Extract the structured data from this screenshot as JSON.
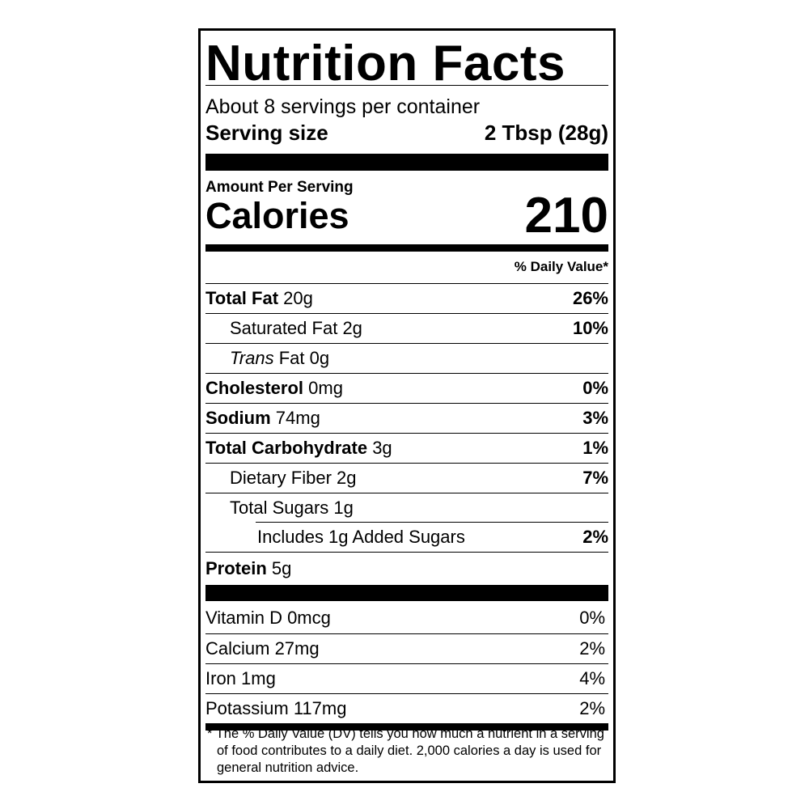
{
  "title": "Nutrition Facts",
  "servings_per_container": "About 8 servings per container",
  "serving_size": {
    "label": "Serving size",
    "value": "2 Tbsp (28g)"
  },
  "amount_per_serving": "Amount Per Serving",
  "calories": {
    "label": "Calories",
    "value": "210"
  },
  "daily_value_header": "% Daily Value*",
  "nutrients": [
    {
      "name": "Total Fat",
      "amount": "20g",
      "dv": "26%"
    },
    {
      "name": "Saturated Fat",
      "amount": "2g",
      "dv": "10%"
    },
    {
      "name": "Trans",
      "name_suffix": "Fat",
      "amount": "0g",
      "dv": ""
    },
    {
      "name": "Cholesterol",
      "amount": "0mg",
      "dv": "0%"
    },
    {
      "name": "Sodium",
      "amount": "74mg",
      "dv": "3%"
    },
    {
      "name": "Total Carbohydrate",
      "amount": "3g",
      "dv": "1%"
    },
    {
      "name": "Dietary Fiber",
      "amount": "2g",
      "dv": "7%"
    },
    {
      "name": "Total Sugars",
      "amount": "1g",
      "dv": ""
    },
    {
      "name": "Includes 1g Added Sugars",
      "amount": "",
      "dv": "2%"
    },
    {
      "name": "Protein",
      "amount": "5g",
      "dv": ""
    }
  ],
  "vitamins": [
    {
      "name": "Vitamin D 0mcg",
      "dv": "0%"
    },
    {
      "name": "Calcium 27mg",
      "dv": "2%"
    },
    {
      "name": "Iron 1mg",
      "dv": "4%"
    },
    {
      "name": "Potassium 117mg",
      "dv": "2%"
    }
  ],
  "footnote": "* The % Daily Value (DV) tells you how much a nutrient in a serving of food contributes to a daily diet. 2,000 calories a day is used for general nutrition advice."
}
